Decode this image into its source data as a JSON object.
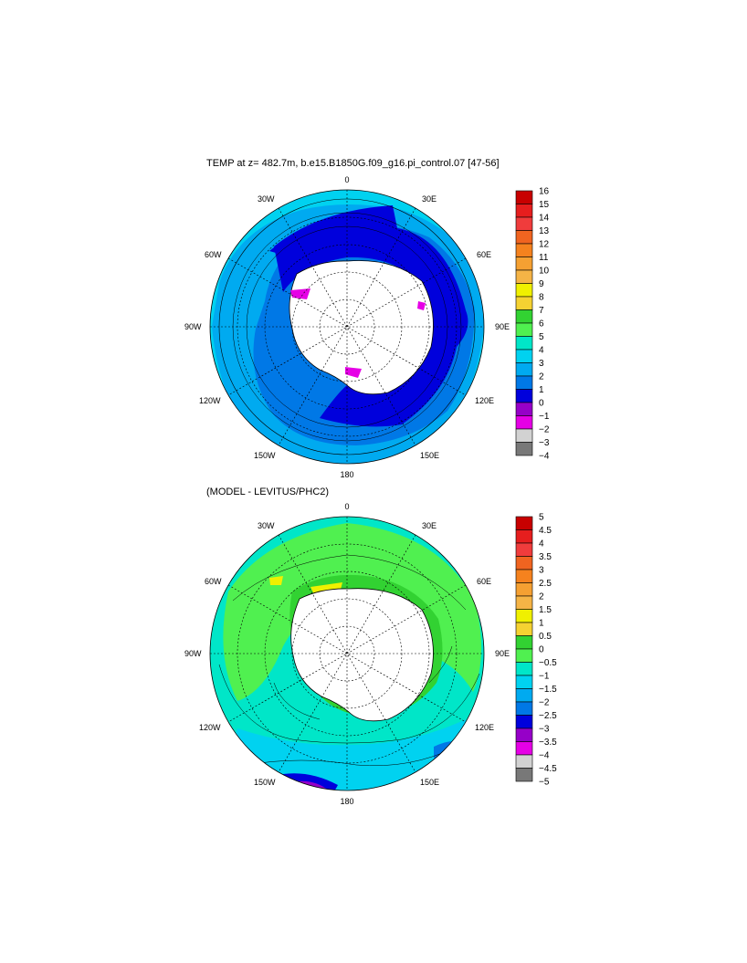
{
  "panels": [
    {
      "title": "TEMP at z= 482.7m, b.e15.B1850G.f09_g16.pi_control.07 [47-56]",
      "lon_labels": [
        "0",
        "30E",
        "60E",
        "90E",
        "120E",
        "150E",
        "180",
        "150W",
        "120W",
        "90W",
        "60W",
        "30W"
      ],
      "colorbar": {
        "labels": [
          "16",
          "15",
          "14",
          "13",
          "12",
          "11",
          "10",
          "9",
          "8",
          "7",
          "6",
          "5",
          "4",
          "3",
          "2",
          "1",
          "0",
          "−1",
          "−2",
          "−3",
          "−4"
        ],
        "colors": [
          "#c80000",
          "#e61e1e",
          "#f03c3c",
          "#f06420",
          "#f5821e",
          "#f5a032",
          "#f5b446",
          "#f0f000",
          "#f5d232",
          "#32d232",
          "#50f050",
          "#00e6c8",
          "#00d2f0",
          "#00aaf0",
          "#0078e6",
          "#0000dc",
          "#9600c8",
          "#e600e6",
          "#d2d2d2",
          "#787878"
        ]
      }
    },
    {
      "title": "(MODEL - LEVITUS/PHC2)",
      "lon_labels": [
        "0",
        "30E",
        "60E",
        "90E",
        "120E",
        "150E",
        "180",
        "150W",
        "120W",
        "90W",
        "60W",
        "30W"
      ],
      "colorbar": {
        "labels": [
          "5",
          "4.5",
          "4",
          "3.5",
          "3",
          "2.5",
          "2",
          "1.5",
          "1",
          "0.5",
          "0",
          "−0.5",
          "−1",
          "−1.5",
          "−2",
          "−2.5",
          "−3",
          "−3.5",
          "−4",
          "−4.5",
          "−5"
        ],
        "colors": [
          "#c80000",
          "#e61e1e",
          "#f03c3c",
          "#f06420",
          "#f5821e",
          "#f5a032",
          "#f5b446",
          "#f0f000",
          "#f5d232",
          "#32d232",
          "#50f050",
          "#00e6c8",
          "#00d2f0",
          "#00aaf0",
          "#0078e6",
          "#0000dc",
          "#9600c8",
          "#e600e6",
          "#d2d2d2",
          "#787878"
        ]
      }
    }
  ]
}
